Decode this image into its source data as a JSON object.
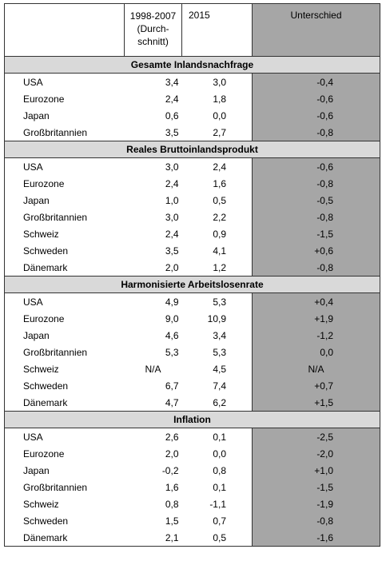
{
  "header": {
    "col1_line1": "1998-2007",
    "col1_line2": "(Durch-",
    "col1_line3": "schnitt)",
    "col2": "2015",
    "col3": "Unterschied"
  },
  "sections": [
    {
      "title": "Gesamte Inlandsnachfrage",
      "rows": [
        {
          "name": "USA",
          "v1": "3,4",
          "v2": "3,0",
          "diff": "-0,4"
        },
        {
          "name": "Eurozone",
          "v1": "2,4",
          "v2": "1,8",
          "diff": "-0,6"
        },
        {
          "name": "Japan",
          "v1": "0,6",
          "v2": "0,0",
          "diff": "-0,6"
        },
        {
          "name": "Großbritannien",
          "v1": "3,5",
          "v2": "2,7",
          "diff": "-0,8"
        }
      ]
    },
    {
      "title": "Reales Bruttoinlandsprodukt",
      "rows": [
        {
          "name": "USA",
          "v1": "3,0",
          "v2": "2,4",
          "diff": "-0,6"
        },
        {
          "name": "Eurozone",
          "v1": "2,4",
          "v2": "1,6",
          "diff": "-0,8"
        },
        {
          "name": "Japan",
          "v1": "1,0",
          "v2": "0,5",
          "diff": "-0,5"
        },
        {
          "name": "Großbritannien",
          "v1": "3,0",
          "v2": "2,2",
          "diff": "-0,8"
        },
        {
          "name": "Schweiz",
          "v1": "2,4",
          "v2": "0,9",
          "diff": "-1,5"
        },
        {
          "name": "Schweden",
          "v1": "3,5",
          "v2": "4,1",
          "diff": "+0,6"
        },
        {
          "name": "Dänemark",
          "v1": "2,0",
          "v2": "1,2",
          "diff": "-0,8"
        }
      ]
    },
    {
      "title": "Harmonisierte Arbeitslosenrate",
      "rows": [
        {
          "name": "USA",
          "v1": "4,9",
          "v2": "5,3",
          "diff": "+0,4"
        },
        {
          "name": "Eurozone",
          "v1": "9,0",
          "v2": "10,9",
          "diff": "+1,9"
        },
        {
          "name": "Japan",
          "v1": "4,6",
          "v2": "3,4",
          "diff": "-1,2"
        },
        {
          "name": "Großbritannien",
          "v1": "5,3",
          "v2": "5,3",
          "diff": "0,0"
        },
        {
          "name": "Schweiz",
          "v1": "N/A",
          "v2": "4,5",
          "diff": "N/A"
        },
        {
          "name": "Schweden",
          "v1": "6,7",
          "v2": "7,4",
          "diff": "+0,7"
        },
        {
          "name": "Dänemark",
          "v1": "4,7",
          "v2": "6,2",
          "diff": "+1,5"
        }
      ]
    },
    {
      "title": "Inflation",
      "rows": [
        {
          "name": "USA",
          "v1": "2,6",
          "v2": "0,1",
          "diff": "-2,5"
        },
        {
          "name": "Eurozone",
          "v1": "2,0",
          "v2": "0,0",
          "diff": "-2,0"
        },
        {
          "name": "Japan",
          "v1": "-0,2",
          "v2": "0,8",
          "diff": "+1,0"
        },
        {
          "name": "Großbritannien",
          "v1": "1,6",
          "v2": "0,1",
          "diff": "-1,5"
        },
        {
          "name": "Schweiz",
          "v1": "0,8",
          "v2": "-1,1",
          "diff": "-1,9"
        },
        {
          "name": "Schweden",
          "v1": "1,5",
          "v2": "0,7",
          "diff": "-0,8"
        },
        {
          "name": "Dänemark",
          "v1": "2,1",
          "v2": "0,5",
          "diff": "-1,6"
        }
      ]
    }
  ]
}
